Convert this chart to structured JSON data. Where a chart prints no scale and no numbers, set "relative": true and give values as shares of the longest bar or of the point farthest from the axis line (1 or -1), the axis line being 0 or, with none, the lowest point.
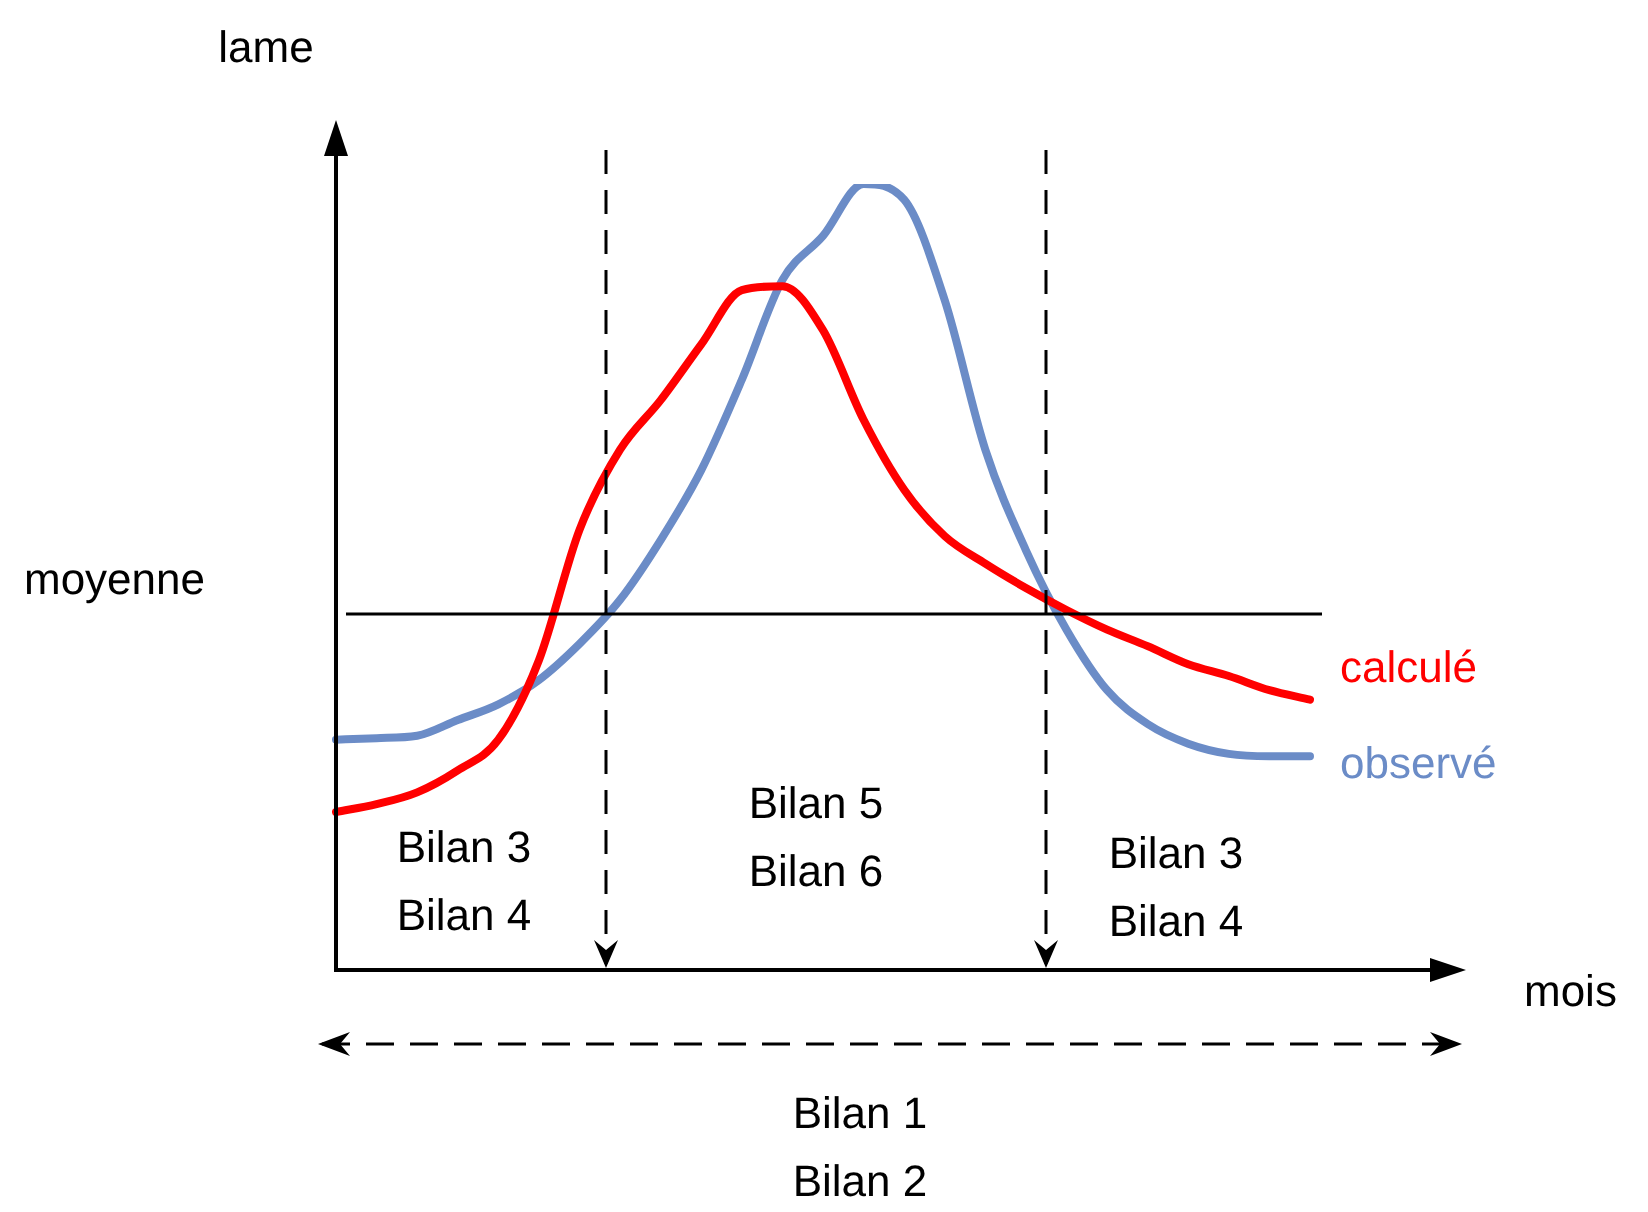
{
  "chart_data": {
    "type": "line",
    "relative": true,
    "xlabel": "mois",
    "ylabel": "lame",
    "categories": [
      null,
      null,
      null,
      null,
      null,
      null,
      null,
      null,
      null,
      null,
      null,
      null,
      null,
      null,
      null,
      null,
      null,
      null,
      null,
      null,
      null,
      null,
      null,
      null,
      null
    ],
    "series": [
      {
        "name": "calculé",
        "color": "#ff0000",
        "values": [
          0.201,
          0.211,
          0.226,
          0.254,
          0.293,
          0.394,
          0.56,
          0.662,
          0.725,
          0.796,
          0.865,
          0.87,
          0.814,
          0.7,
          0.611,
          0.552,
          0.517,
          0.486,
          0.458,
          0.433,
          0.412,
          0.389,
          0.374,
          0.356,
          0.344
        ]
      },
      {
        "name": "observé",
        "color": "#6b8cc7",
        "values": [
          0.293,
          0.295,
          0.298,
          0.318,
          0.338,
          0.369,
          0.415,
          0.471,
          0.547,
          0.636,
          0.751,
          0.878,
          0.934,
          1.0,
          0.98,
          0.852,
          0.662,
          0.534,
          0.433,
          0.356,
          0.313,
          0.288,
          0.275,
          0.272,
          0.272
        ]
      }
    ],
    "ref_lines": [
      {
        "axis": "y",
        "value": 0.453,
        "label": "moyenne",
        "color": "#000000"
      }
    ],
    "annotations": [
      "Bilan 3\nBilan 4",
      "Bilan 5\nBilan 6",
      "Bilan 3\nBilan 4",
      "Bilan 1\nBilan 2"
    ],
    "legend": false,
    "marker": "none",
    "line_style": "solid"
  }
}
